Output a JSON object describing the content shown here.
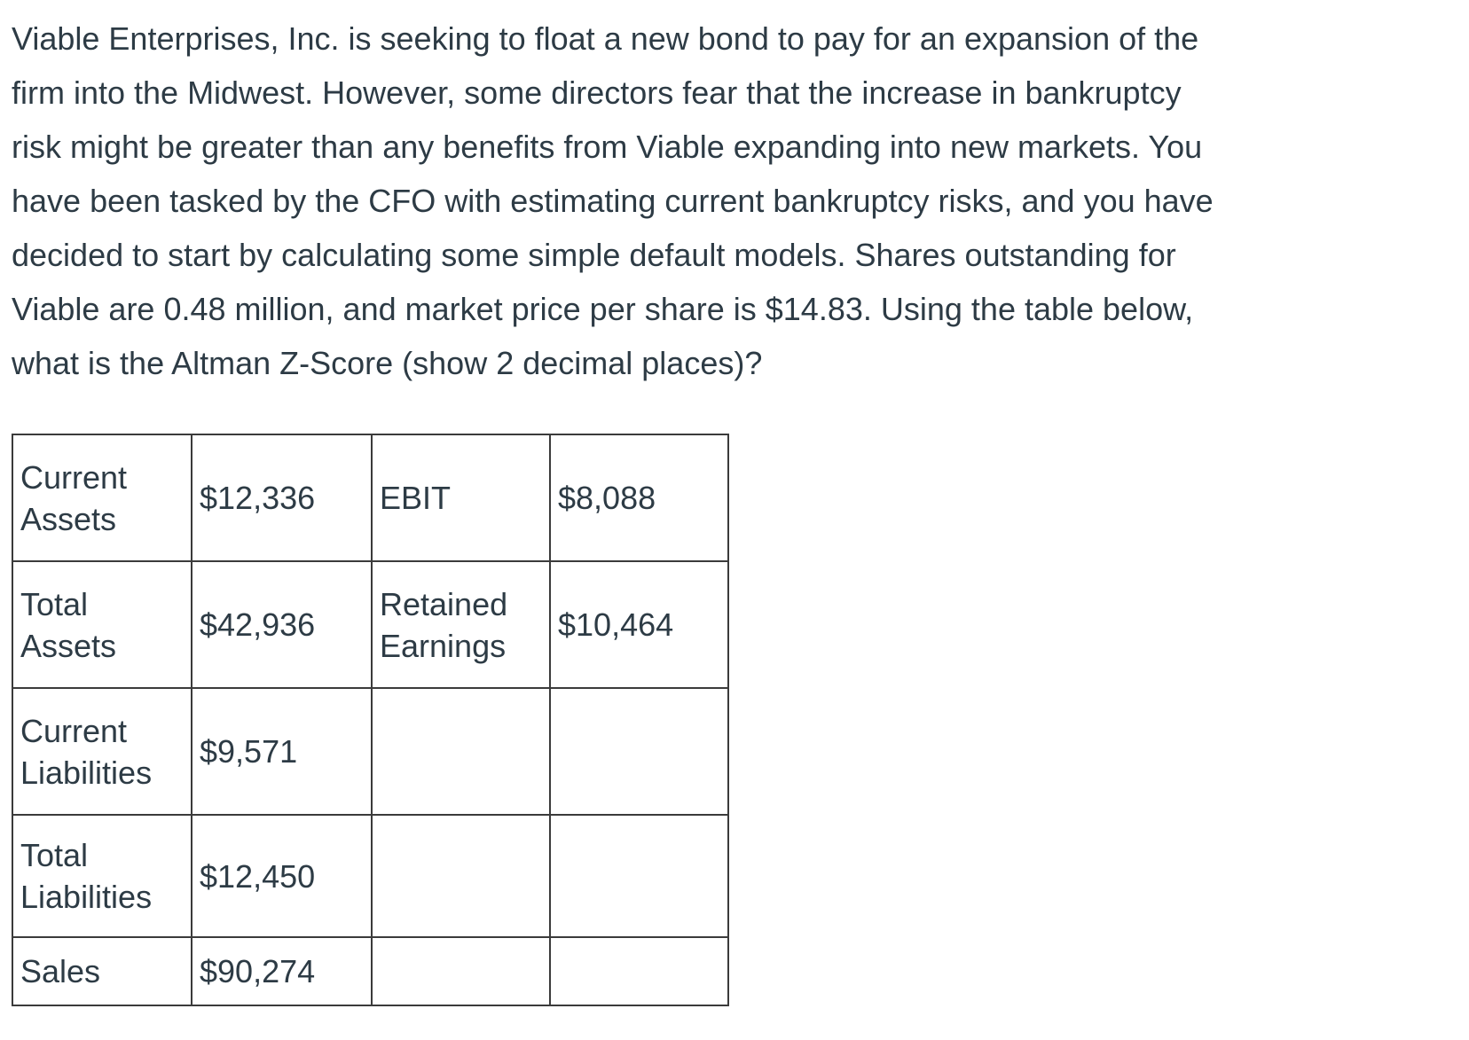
{
  "colors": {
    "text": "#2d3b45",
    "table_border": "#3b3b3b",
    "background": "#ffffff"
  },
  "question": {
    "lines": [
      "Viable Enterprises, Inc. is seeking to float a new bond to pay for an expansion of the",
      "firm into the Midwest. However, some directors fear that the increase in bankruptcy",
      "risk might be greater than any benefits from Viable expanding into new markets. You",
      "have been tasked by the CFO with estimating current bankruptcy risks, and you have",
      "decided to start by calculating some simple default models. Shares outstanding for",
      "Viable are 0.48 million, and market price per share is $14.83. Using the table below,",
      "what is the Altman Z-Score (show 2 decimal places)?"
    ],
    "full_text": "Viable Enterprises, Inc. is seeking to float a new bond to pay for an expansion of the firm into the Midwest. However, some directors fear that the increase in bankruptcy risk might be greater than any benefits from Viable expanding into new markets. You have been tasked by the CFO with estimating current bankruptcy risks, and you have decided to start by calculating some simple default models. Shares outstanding for Viable are 0.48 million, and market price per share is $14.83. Using the table below, what is the Altman Z-Score (show 2 decimal places)?"
  },
  "financial_table": {
    "rows": [
      [
        "Current Assets",
        "$12,336",
        "EBIT",
        "$8,088"
      ],
      [
        "Total Assets",
        "$42,936",
        "Retained Earnings",
        "$10,464"
      ],
      [
        "Current Liabilities",
        "$9,571",
        "",
        ""
      ],
      [
        "Total Liabilities",
        "$12,450",
        "",
        ""
      ],
      [
        "Sales",
        "$90,274",
        "",
        ""
      ]
    ]
  }
}
